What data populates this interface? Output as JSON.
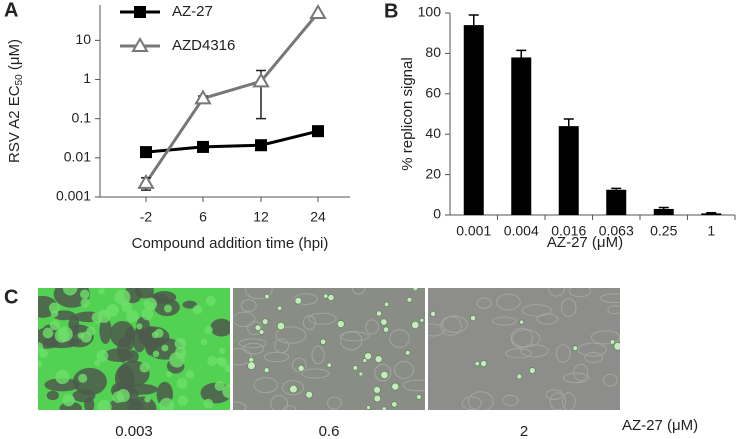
{
  "chart_data": [
    {
      "type": "line",
      "panel_label": "A",
      "log_y": true,
      "y_label": {
        "text": "RSV A2 EC",
        "subscript": "50",
        "suffix": " (μM)"
      },
      "x_label": "Compound addition time (hpi)",
      "categories": [
        "-2",
        "6",
        "12",
        "24"
      ],
      "ylim": [
        0.001,
        80
      ],
      "yticks": [
        0.001,
        0.01,
        0.1,
        1,
        10
      ],
      "series": [
        {
          "name": "AZ-27",
          "color": "#000000",
          "marker": "square",
          "values": [
            0.014,
            0.019,
            0.021,
            0.048
          ]
        },
        {
          "name": "AZD4316",
          "color": "#777777",
          "marker": "triangle",
          "values": [
            0.0023,
            0.33,
            0.9,
            50
          ],
          "errors": [
            0.0008,
            0.05,
            0.8,
            null
          ]
        }
      ]
    },
    {
      "type": "bar",
      "panel_label": "B",
      "color": "#000000",
      "y_label": "% replicon signal",
      "x_label": "AZ-27 (μM)",
      "categories": [
        "0.001",
        "0.004",
        "0.016",
        "0.063",
        "0.25",
        "1"
      ],
      "values": [
        94,
        78,
        44,
        12.5,
        3,
        0.8
      ],
      "errors": [
        5,
        3.5,
        3.5,
        0.7,
        0.7,
        0.3
      ],
      "ylim": [
        0,
        100
      ],
      "yticks": [
        0,
        20,
        40,
        60,
        80,
        100
      ]
    }
  ],
  "panel_c": {
    "label": "C",
    "image_labels": [
      "0.003",
      "0.6",
      "2"
    ],
    "axis_label": "AZ-27 (μM)"
  }
}
